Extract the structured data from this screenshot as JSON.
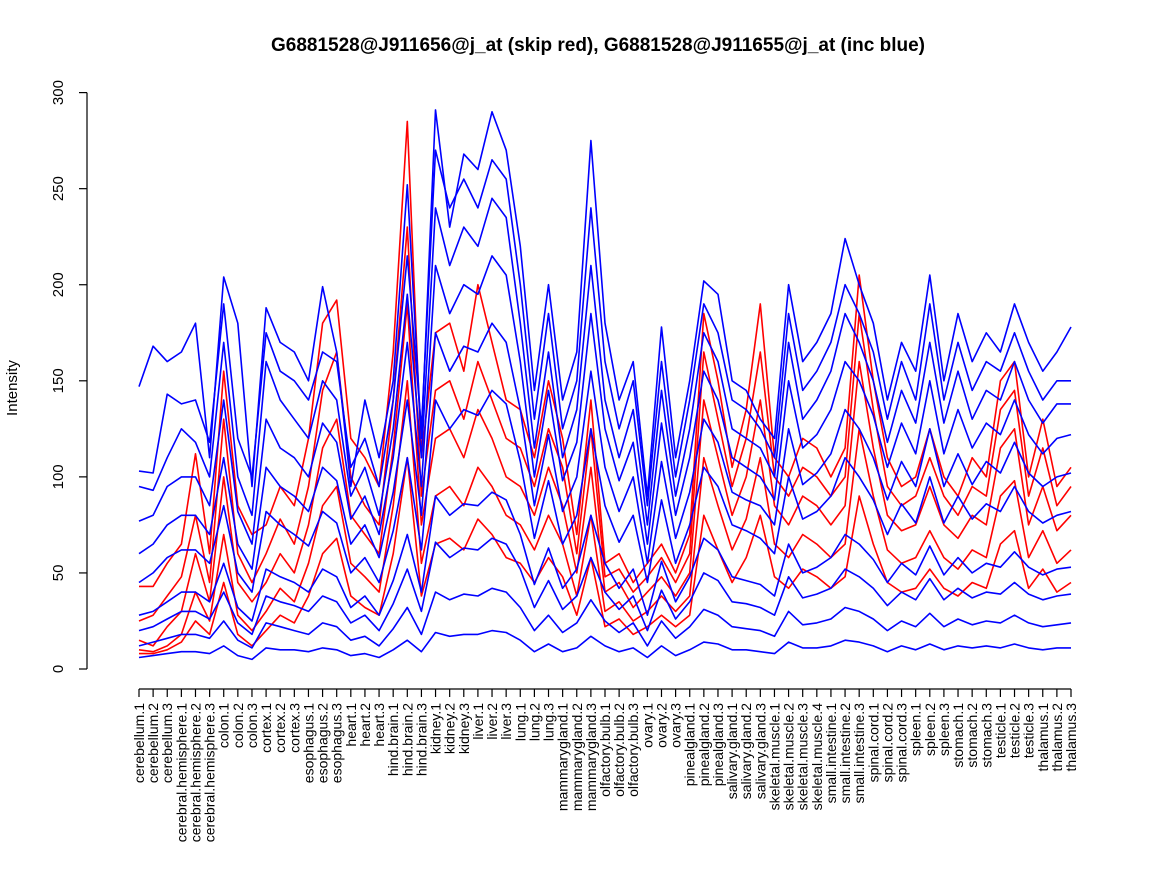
{
  "chart_data": {
    "type": "line",
    "title": "G6881528@J911656@j_at (skip red), G6881528@J911655@j_at (inc blue)",
    "xlabel": "",
    "ylabel": "Intensity",
    "ylim": [
      0,
      300
    ],
    "y_ticks": [
      0,
      50,
      100,
      150,
      200,
      250,
      300
    ],
    "grid": false,
    "categories": [
      "cerebellum.1",
      "cerebellum.2",
      "cerebellum.3",
      "cerebral.hemisphere.1",
      "cerebral.hemisphere.2",
      "cerebral.hemisphere.3",
      "colon.1",
      "colon.2",
      "colon.3",
      "cortex.1",
      "cortex.2",
      "cortex.3",
      "esophagus.1",
      "esophagus.2",
      "esophagus.3",
      "heart.1",
      "heart.2",
      "heart.3",
      "hind.brain.1",
      "hind.brain.2",
      "hind.brain.3",
      "kidney.1",
      "kidney.2",
      "kidney.3",
      "liver.1",
      "liver.2",
      "liver.3",
      "lung.1",
      "lung.2",
      "lung.3",
      "mammarygland.1",
      "mammarygland.2",
      "mammarygland.3",
      "olfactory.bulb.1",
      "olfactory.bulb.2",
      "olfactory.bulb.3",
      "ovary.1",
      "ovary.2",
      "ovary.3",
      "pinealgland.1",
      "pinealgland.2",
      "pinealgland.3",
      "salivary.gland.1",
      "salivary.gland.2",
      "salivary.gland.3",
      "skeletal.muscle.1",
      "skeletal.muscle.2",
      "skeletal.muscle.3",
      "skeletal.muscle.4",
      "small.intestine.1",
      "small.intestine.2",
      "small.intestine.3",
      "spinal.cord.1",
      "spinal.cord.2",
      "spinal.cord.3",
      "spleen.1",
      "spleen.2",
      "spleen.3",
      "stomach.1",
      "stomach.2",
      "stomach.3",
      "testicle.1",
      "testicle.2",
      "testicle.3",
      "thalamus.1",
      "thalamus.2",
      "thalamus.3"
    ],
    "series": [
      {
        "color": "#ff0000",
        "values": [
          43,
          43,
          55,
          65,
          112,
          60,
          155,
          85,
          70,
          75,
          95,
          85,
          120,
          180,
          192,
          120,
          110,
          95,
          165,
          285,
          110,
          175,
          180,
          155,
          200,
          170,
          140,
          135,
          110,
          150,
          120,
          70,
          140,
          55,
          60,
          45,
          55,
          65,
          50,
          70,
          185,
          150,
          105,
          135,
          190,
          110,
          100,
          120,
          115,
          100,
          115,
          205,
          150,
          110,
          95,
          100,
          125,
          100,
          90,
          110,
          100,
          150,
          160,
          100,
          130,
          95,
          105
        ]
      },
      {
        "color": "#ff0000",
        "values": [
          25,
          28,
          38,
          48,
          80,
          45,
          130,
          60,
          45,
          60,
          78,
          65,
          95,
          145,
          165,
          100,
          85,
          75,
          140,
          230,
          90,
          145,
          150,
          130,
          160,
          140,
          120,
          115,
          95,
          125,
          105,
          60,
          125,
          48,
          52,
          40,
          48,
          58,
          45,
          60,
          165,
          130,
          95,
          120,
          165,
          100,
          90,
          105,
          100,
          90,
          100,
          185,
          135,
          95,
          85,
          90,
          110,
          90,
          80,
          95,
          90,
          135,
          145,
          90,
          115,
          85,
          95
        ]
      },
      {
        "color": "#ff0000",
        "values": [
          15,
          12,
          22,
          30,
          60,
          35,
          100,
          45,
          35,
          45,
          60,
          50,
          75,
          115,
          130,
          80,
          70,
          60,
          115,
          190,
          75,
          120,
          125,
          110,
          135,
          120,
          100,
          95,
          80,
          105,
          85,
          50,
          105,
          40,
          45,
          32,
          40,
          48,
          38,
          50,
          140,
          110,
          80,
          100,
          140,
          85,
          75,
          90,
          85,
          75,
          85,
          160,
          115,
          80,
          72,
          75,
          95,
          75,
          68,
          80,
          75,
          115,
          125,
          75,
          95,
          72,
          80
        ]
      },
      {
        "color": "#ff0000",
        "values": [
          10,
          9,
          12,
          18,
          40,
          25,
          70,
          28,
          20,
          30,
          42,
          35,
          55,
          85,
          95,
          55,
          48,
          40,
          85,
          150,
          55,
          90,
          95,
          85,
          105,
          95,
          80,
          75,
          62,
          80,
          65,
          38,
          80,
          30,
          35,
          25,
          30,
          38,
          30,
          38,
          110,
          85,
          62,
          78,
          110,
          65,
          58,
          70,
          65,
          58,
          65,
          125,
          90,
          62,
          55,
          58,
          72,
          58,
          52,
          62,
          58,
          90,
          98,
          58,
          72,
          55,
          62
        ]
      },
      {
        "color": "#ff0000",
        "values": [
          8,
          8,
          10,
          14,
          25,
          18,
          45,
          18,
          12,
          20,
          28,
          24,
          38,
          60,
          68,
          38,
          32,
          28,
          60,
          110,
          38,
          65,
          68,
          62,
          78,
          70,
          58,
          55,
          45,
          58,
          48,
          28,
          58,
          22,
          26,
          18,
          22,
          28,
          22,
          28,
          80,
          62,
          45,
          58,
          80,
          48,
          42,
          52,
          48,
          42,
          48,
          90,
          65,
          45,
          40,
          42,
          52,
          42,
          38,
          45,
          42,
          65,
          72,
          42,
          52,
          40,
          45
        ]
      },
      {
        "color": "#0000ff",
        "values": [
          147,
          168,
          160,
          165,
          180,
          110,
          204,
          180,
          95,
          188,
          170,
          165,
          150,
          199,
          165,
          95,
          140,
          110,
          150,
          252,
          120,
          291,
          230,
          268,
          260,
          290,
          270,
          220,
          145,
          200,
          140,
          165,
          275,
          180,
          140,
          160,
          90,
          178,
          110,
          150,
          202,
          195,
          150,
          145,
          130,
          120,
          200,
          160,
          170,
          185,
          224,
          200,
          180,
          140,
          170,
          155,
          205,
          150,
          185,
          160,
          175,
          165,
          190,
          170,
          155,
          165,
          178
        ]
      },
      {
        "color": "#0000ff",
        "values": [
          103,
          102,
          143,
          138,
          140,
          118,
          190,
          120,
          100,
          175,
          155,
          150,
          140,
          165,
          160,
          105,
          120,
          95,
          140,
          215,
          125,
          270,
          240,
          255,
          240,
          265,
          255,
          200,
          130,
          185,
          125,
          150,
          240,
          160,
          125,
          150,
          85,
          160,
          100,
          140,
          190,
          175,
          140,
          135,
          125,
          110,
          185,
          145,
          155,
          170,
          200,
          185,
          165,
          130,
          160,
          140,
          190,
          140,
          170,
          145,
          160,
          155,
          175,
          155,
          140,
          150,
          150
        ]
      },
      {
        "color": "#0000ff",
        "values": [
          95,
          93,
          110,
          125,
          118,
          100,
          170,
          100,
          80,
          160,
          140,
          130,
          120,
          150,
          140,
          90,
          105,
          80,
          125,
          195,
          110,
          240,
          210,
          230,
          220,
          245,
          235,
          180,
          115,
          165,
          110,
          135,
          210,
          140,
          110,
          135,
          75,
          145,
          90,
          125,
          175,
          160,
          125,
          120,
          115,
          100,
          170,
          130,
          140,
          155,
          185,
          170,
          150,
          118,
          145,
          128,
          170,
          128,
          155,
          130,
          145,
          140,
          160,
          140,
          128,
          138,
          138
        ]
      },
      {
        "color": "#0000ff",
        "values": [
          77,
          80,
          95,
          100,
          100,
          85,
          140,
          82,
          65,
          130,
          115,
          110,
          100,
          128,
          118,
          78,
          90,
          70,
          110,
          170,
          95,
          210,
          185,
          200,
          195,
          215,
          205,
          160,
          100,
          145,
          98,
          118,
          185,
          125,
          98,
          118,
          65,
          128,
          80,
          110,
          155,
          140,
          110,
          105,
          100,
          88,
          150,
          115,
          122,
          135,
          160,
          150,
          132,
          105,
          128,
          112,
          150,
          112,
          135,
          115,
          128,
          122,
          140,
          122,
          112,
          120,
          122
        ]
      },
      {
        "color": "#0000ff",
        "values": [
          60,
          65,
          75,
          80,
          80,
          70,
          110,
          65,
          52,
          105,
          95,
          90,
          82,
          105,
          98,
          65,
          75,
          58,
          92,
          140,
          80,
          175,
          155,
          168,
          165,
          180,
          170,
          135,
          85,
          122,
          82,
          100,
          155,
          105,
          82,
          100,
          55,
          108,
          68,
          92,
          130,
          118,
          92,
          88,
          85,
          75,
          125,
          96,
          102,
          112,
          135,
          125,
          110,
          88,
          108,
          95,
          125,
          95,
          112,
          96,
          108,
          102,
          118,
          102,
          95,
          100,
          102
        ]
      },
      {
        "color": "#0000ff",
        "values": [
          45,
          50,
          58,
          62,
          62,
          55,
          85,
          50,
          40,
          82,
          75,
          70,
          64,
          82,
          76,
          50,
          58,
          45,
          72,
          110,
          62,
          140,
          125,
          135,
          132,
          145,
          138,
          108,
          68,
          98,
          65,
          80,
          125,
          85,
          66,
          80,
          45,
          88,
          55,
          75,
          105,
          95,
          75,
          72,
          68,
          60,
          100,
          78,
          82,
          90,
          110,
          100,
          88,
          70,
          86,
          76,
          100,
          76,
          90,
          78,
          86,
          82,
          95,
          82,
          76,
          80,
          82
        ]
      },
      {
        "color": "#0000ff",
        "values": [
          28,
          30,
          35,
          40,
          40,
          35,
          55,
          32,
          25,
          52,
          48,
          45,
          40,
          52,
          48,
          32,
          38,
          28,
          46,
          70,
          40,
          90,
          80,
          86,
          85,
          92,
          88,
          70,
          44,
          63,
          42,
          52,
          80,
          55,
          42,
          52,
          28,
          56,
          35,
          48,
          68,
          62,
          48,
          46,
          44,
          38,
          65,
          50,
          53,
          58,
          70,
          65,
          57,
          45,
          55,
          49,
          64,
          49,
          58,
          50,
          55,
          53,
          61,
          53,
          49,
          52,
          53
        ]
      },
      {
        "color": "#0000ff",
        "values": [
          20,
          22,
          26,
          30,
          30,
          26,
          40,
          24,
          18,
          38,
          35,
          33,
          30,
          38,
          35,
          24,
          28,
          20,
          34,
          52,
          30,
          66,
          58,
          63,
          62,
          68,
          65,
          52,
          32,
          46,
          31,
          38,
          58,
          40,
          31,
          38,
          20,
          41,
          26,
          35,
          50,
          46,
          35,
          34,
          32,
          28,
          48,
          37,
          39,
          42,
          52,
          48,
          42,
          33,
          40,
          36,
          47,
          36,
          42,
          37,
          40,
          39,
          45,
          39,
          36,
          38,
          39
        ]
      },
      {
        "color": "#0000ff",
        "values": [
          12,
          14,
          16,
          18,
          18,
          16,
          25,
          15,
          11,
          24,
          22,
          20,
          18,
          24,
          22,
          15,
          17,
          12,
          21,
          32,
          18,
          40,
          36,
          39,
          38,
          42,
          40,
          32,
          20,
          28,
          19,
          24,
          36,
          25,
          19,
          24,
          12,
          25,
          16,
          22,
          31,
          28,
          22,
          21,
          20,
          17,
          30,
          23,
          24,
          26,
          32,
          30,
          26,
          20,
          25,
          22,
          29,
          22,
          26,
          23,
          25,
          24,
          28,
          24,
          22,
          23,
          24
        ]
      },
      {
        "color": "#0000ff",
        "values": [
          6,
          7,
          8,
          9,
          9,
          8,
          12,
          7,
          5,
          11,
          10,
          10,
          9,
          11,
          10,
          7,
          8,
          6,
          10,
          15,
          9,
          19,
          17,
          18,
          18,
          20,
          19,
          15,
          9,
          13,
          9,
          11,
          17,
          12,
          9,
          11,
          6,
          12,
          7,
          10,
          14,
          13,
          10,
          10,
          9,
          8,
          14,
          11,
          11,
          12,
          15,
          14,
          12,
          9,
          12,
          10,
          13,
          10,
          12,
          11,
          12,
          11,
          13,
          11,
          10,
          11,
          11
        ]
      }
    ]
  }
}
